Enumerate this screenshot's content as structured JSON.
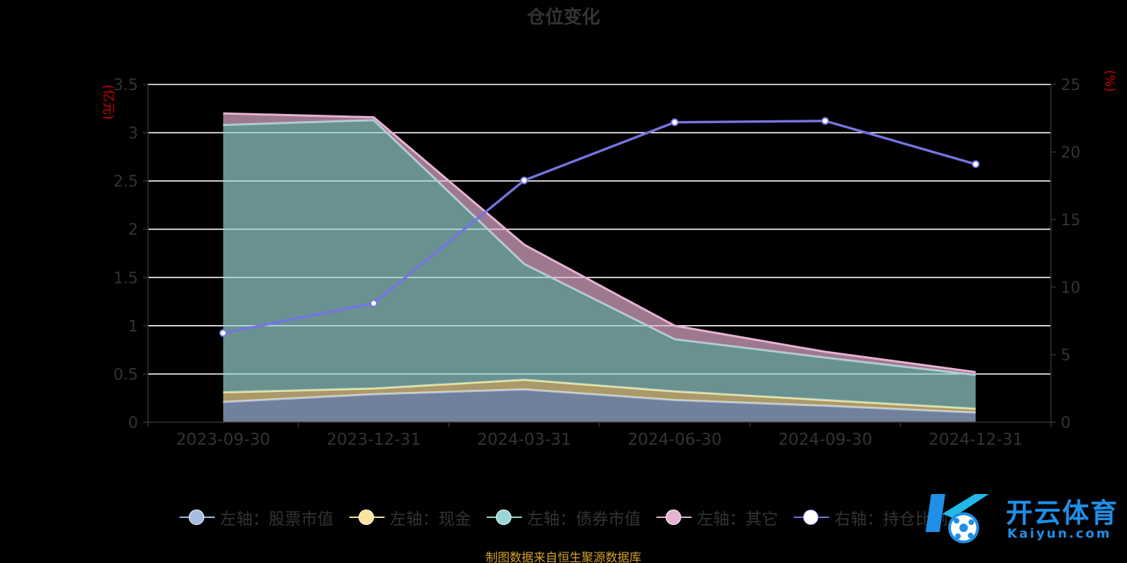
{
  "title": "仓位变化",
  "source_note": "制图数据来自恒生聚源数据库",
  "watermark": {
    "brand": "开云体育",
    "site": "Kaiyun.com"
  },
  "colors": {
    "stock": "#a6bde4",
    "cash": "#fbe39e",
    "bond": "#99d6d4",
    "other": "#e7b3d3",
    "ratio": "#7474e0",
    "axis_unit": "#cc0000",
    "axis_text": "#333333",
    "grid": "#ffffff"
  },
  "chart_data": {
    "type": "area",
    "stacked": true,
    "categories": [
      "2023-09-30",
      "2023-12-31",
      "2024-03-31",
      "2024-06-30",
      "2024-09-30",
      "2024-12-31"
    ],
    "left_axis": {
      "unit": "(亿元)",
      "min": 0,
      "max": 3.5,
      "ticks": [
        "0",
        "0.5",
        "1",
        "1.5",
        "2",
        "2.5",
        "3",
        "3.5"
      ]
    },
    "right_axis": {
      "unit": "(%)",
      "min": 0,
      "max": 25,
      "ticks": [
        "0",
        "5",
        "10",
        "15",
        "20",
        "25"
      ]
    },
    "grid": true,
    "legend_position": "bottom",
    "series": [
      {
        "key": "stock",
        "name": "左轴：股票市值",
        "axis": "left",
        "type": "area",
        "values": [
          0.21,
          0.29,
          0.34,
          0.23,
          0.17,
          0.1
        ]
      },
      {
        "key": "cash",
        "name": "左轴：现金",
        "axis": "left",
        "type": "area",
        "values": [
          0.1,
          0.06,
          0.1,
          0.09,
          0.06,
          0.04
        ]
      },
      {
        "key": "bond",
        "name": "左轴：债券市值",
        "axis": "left",
        "type": "area",
        "values": [
          2.77,
          2.78,
          1.2,
          0.54,
          0.44,
          0.35
        ]
      },
      {
        "key": "other",
        "name": "左轴：其它",
        "axis": "left",
        "type": "area",
        "values": [
          0.12,
          0.03,
          0.2,
          0.14,
          0.06,
          0.03
        ]
      },
      {
        "key": "ratio",
        "name": "右轴：持仓比例",
        "axis": "right",
        "type": "line",
        "values": [
          6.6,
          8.8,
          17.9,
          22.2,
          22.3,
          19.1
        ]
      }
    ]
  }
}
